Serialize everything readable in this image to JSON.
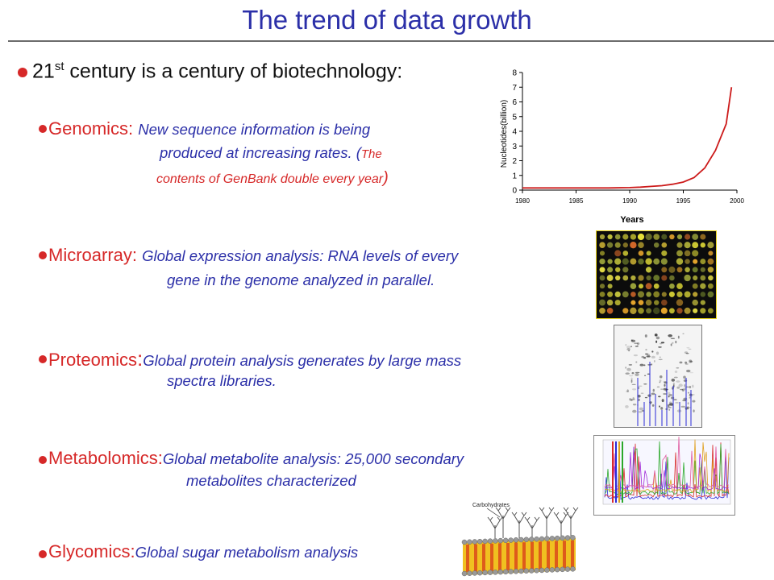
{
  "title": "The trend of data growth",
  "headline": {
    "text_before": "21",
    "sup": "st",
    "text_after": " century is a century of biotechnology:"
  },
  "items": [
    {
      "term": "Genomics",
      "sep": ": ",
      "line1": "New sequence information is being",
      "line2": "produced at increasing rates. (",
      "line3_small_a": "The",
      "line3": "contents of GenBank double every year",
      "close_paren": ")"
    },
    {
      "term": "Microarray",
      "sep": ": ",
      "line1": "Global expression analysis: RNA levels of every",
      "line2": "gene in the genome analyzed in parallel."
    },
    {
      "term": "Proteomics",
      "sep": ":",
      "line1": "Global protein analysis generates by large mass",
      "line2": "spectra libraries."
    },
    {
      "term": "Metabolomics",
      "sep": ":",
      "line1": "Global metabolite analysis: 25,000 secondary",
      "line2": "metabolites characterized"
    },
    {
      "term": "Glycomics",
      "sep": ":",
      "line1": "Global sugar metabolism analysis"
    }
  ],
  "membrane_label": "Carbohydrates",
  "colors": {
    "title": "#2b2fa8",
    "term": "#d62828",
    "description": "#2b2fa8",
    "curve": "#cc1a1a"
  },
  "chart_data": {
    "type": "line",
    "title": "",
    "xlabel": "Years",
    "ylabel": "Nucleotides(billion)",
    "xlim": [
      1980,
      2000
    ],
    "ylim": [
      0,
      8
    ],
    "xticks": [
      1980,
      1985,
      1990,
      1995,
      2000
    ],
    "yticks": [
      0,
      1,
      2,
      3,
      4,
      5,
      6,
      7,
      8
    ],
    "grid": false,
    "series": [
      {
        "x": [
          1980,
          1982,
          1984,
          1986,
          1988,
          1990,
          1991,
          1992,
          1993,
          1994,
          1995,
          1996,
          1997,
          1998,
          1999,
          1999.5
        ],
        "y": [
          0.15,
          0.15,
          0.15,
          0.15,
          0.15,
          0.17,
          0.2,
          0.25,
          0.3,
          0.4,
          0.55,
          0.85,
          1.5,
          2.7,
          4.5,
          7.0
        ]
      }
    ]
  }
}
